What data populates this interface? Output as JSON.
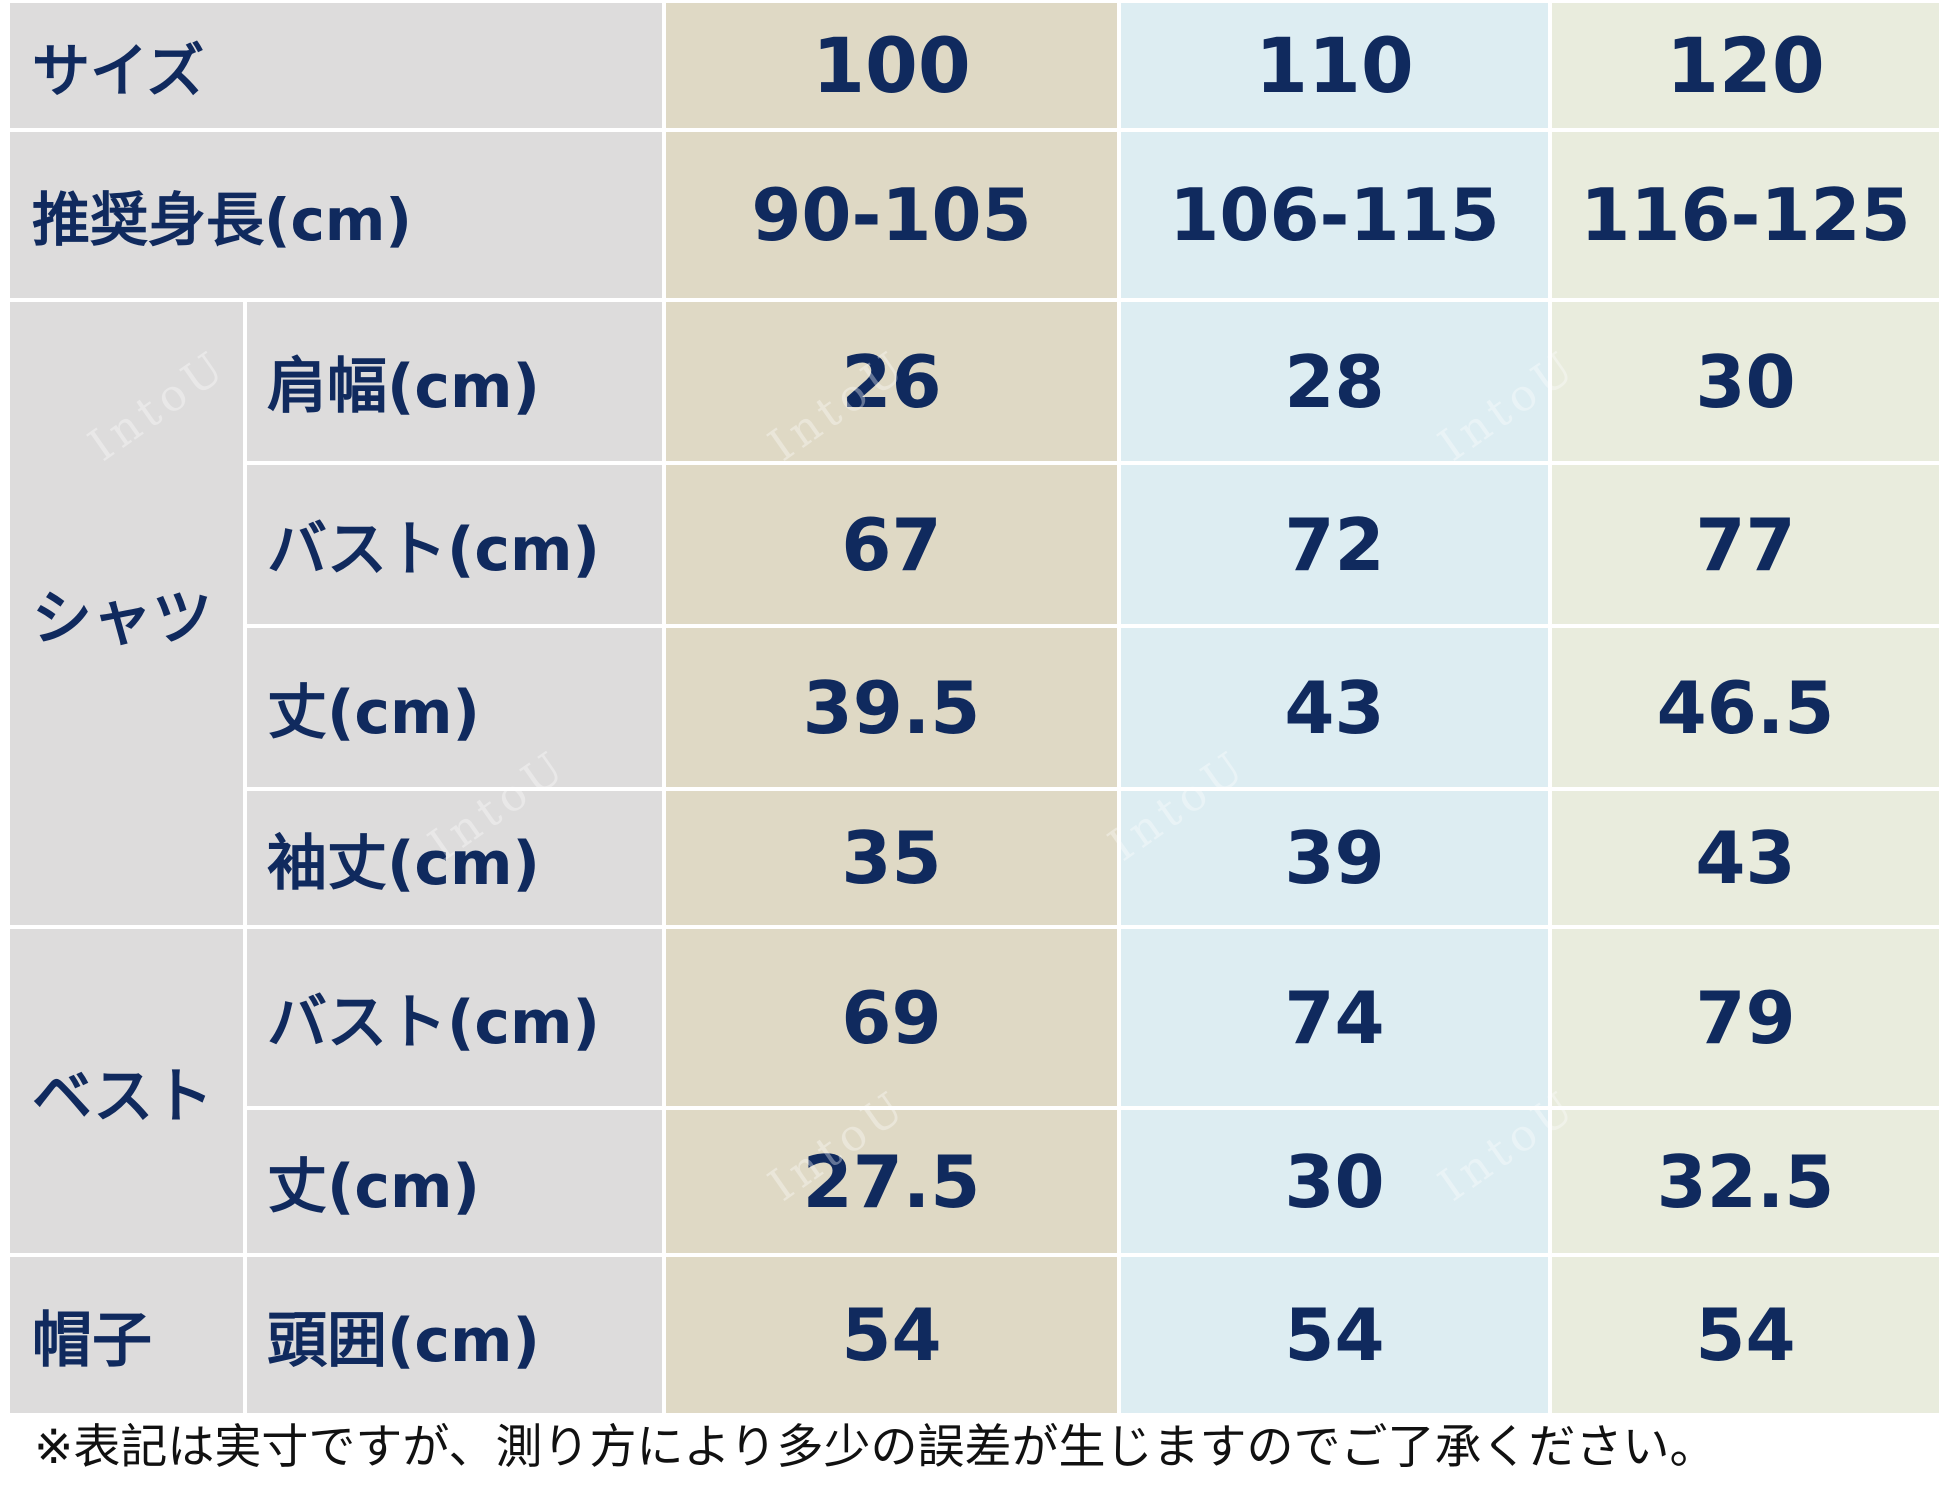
{
  "header": {
    "size_label": "サイズ",
    "sizes": [
      "100",
      "110",
      "120"
    ]
  },
  "height_row": {
    "label": "推奨身長(cm)",
    "values": [
      "90-105",
      "106-115",
      "116-125"
    ]
  },
  "shirt": {
    "category": "シャツ",
    "rows": [
      {
        "label": "肩幅(cm)",
        "values": [
          "26",
          "28",
          "30"
        ]
      },
      {
        "label": "バスト(cm)",
        "values": [
          "67",
          "72",
          "77"
        ]
      },
      {
        "label": "丈(cm)",
        "values": [
          "39.5",
          "43",
          "46.5"
        ]
      },
      {
        "label": "袖丈(cm)",
        "values": [
          "35",
          "39",
          "43"
        ]
      }
    ]
  },
  "vest": {
    "category": "ベスト",
    "rows": [
      {
        "label": "バスト(cm)",
        "values": [
          "69",
          "74",
          "79"
        ]
      },
      {
        "label": "丈(cm)",
        "values": [
          "27.5",
          "30",
          "32.5"
        ]
      }
    ]
  },
  "hat": {
    "category": "帽子",
    "rows": [
      {
        "label": "頭囲(cm)",
        "values": [
          "54",
          "54",
          "54"
        ]
      }
    ]
  },
  "note": "※表記は実寸ですが、測り方により多少の誤差が生じますのでご了承ください。",
  "watermark": "IntoU",
  "colors": {
    "text": "#102a5e",
    "label_bg": "#dddcdc",
    "col_100_bg": "#dfd9c5",
    "col_110_bg": "#ddedf2",
    "col_120_bg": "#e9ecdd"
  }
}
